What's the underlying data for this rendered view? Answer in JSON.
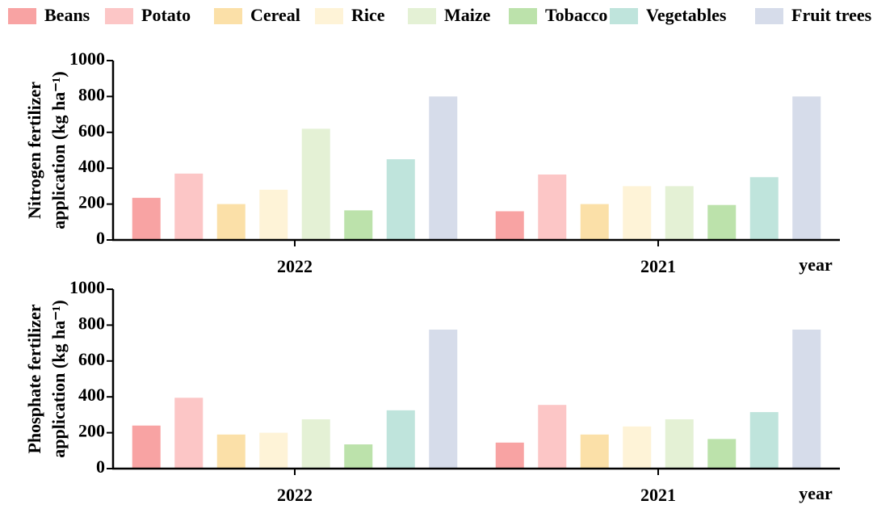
{
  "chart_data": [
    {
      "type": "bar",
      "ylabel": [
        "Nitrogen fertilizer",
        "application (kg ha⁻¹)"
      ],
      "xlabel": "year",
      "categories": [
        "2022",
        "2021"
      ],
      "series": [
        {
          "name": "Beans",
          "color": "#f8a3a3",
          "values": [
            235,
            160
          ]
        },
        {
          "name": "Potato",
          "color": "#fcc6c6",
          "values": [
            370,
            365
          ]
        },
        {
          "name": "Cereal",
          "color": "#fbe0a8",
          "values": [
            200,
            200
          ]
        },
        {
          "name": "Rice",
          "color": "#fef3d7",
          "values": [
            280,
            300
          ]
        },
        {
          "name": "Maize",
          "color": "#e4f1d5",
          "values": [
            620,
            300
          ]
        },
        {
          "name": "Tobacco",
          "color": "#bce2ab",
          "values": [
            165,
            195
          ]
        },
        {
          "name": "Vegetables",
          "color": "#bfe4dc",
          "values": [
            450,
            350
          ]
        },
        {
          "name": "Fruit trees",
          "color": "#d6dcea",
          "values": [
            800,
            800
          ]
        }
      ],
      "ylim": [
        0,
        1000
      ],
      "yticks": [
        0,
        200,
        400,
        600,
        800,
        1000
      ]
    },
    {
      "type": "bar",
      "ylabel": [
        "Phosphate fertilizer",
        "application (kg ha⁻¹)"
      ],
      "xlabel": "year",
      "categories": [
        "2022",
        "2021"
      ],
      "series": [
        {
          "values": [
            240,
            145
          ]
        },
        {
          "values": [
            395,
            355
          ]
        },
        {
          "values": [
            190,
            190
          ]
        },
        {
          "values": [
            200,
            235
          ]
        },
        {
          "values": [
            275,
            275
          ]
        },
        {
          "values": [
            135,
            165
          ]
        },
        {
          "values": [
            325,
            315
          ]
        },
        {
          "values": [
            775,
            775
          ]
        }
      ],
      "ylim": [
        0,
        1000
      ],
      "yticks": [
        0,
        200,
        400,
        600,
        800,
        1000
      ]
    }
  ]
}
